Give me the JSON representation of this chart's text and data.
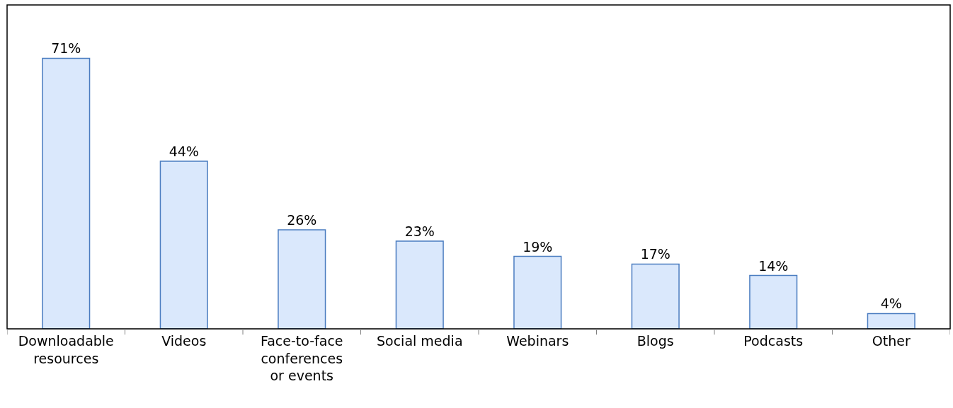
{
  "chart_data": {
    "type": "bar",
    "categories": [
      "Downloadable resources",
      "Videos",
      "Face-to-face conferences or events",
      "Social media",
      "Webinars",
      "Blogs",
      "Podcasts",
      "Other"
    ],
    "values": [
      71,
      44,
      26,
      23,
      19,
      17,
      14,
      4
    ],
    "value_labels": [
      "71%",
      "44%",
      "26%",
      "23%",
      "19%",
      "17%",
      "14%",
      "4%"
    ],
    "color": "#dae8fc",
    "grid": false,
    "legend": false
  }
}
